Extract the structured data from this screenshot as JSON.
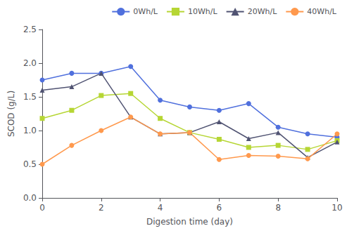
{
  "chart_data": {
    "type": "line",
    "xlabel": "Digestion time (day)",
    "ylabel": "SCOD (g/L)",
    "x": [
      0,
      1,
      2,
      3,
      4,
      5,
      6,
      7,
      8,
      9,
      10
    ],
    "series": [
      {
        "name": "0Wh/L",
        "marker": "circle",
        "line_style": "solid",
        "values": [
          1.75,
          1.85,
          1.85,
          1.95,
          1.45,
          1.35,
          1.3,
          1.4,
          1.05,
          0.95,
          0.9
        ]
      },
      {
        "name": "10Wh/L",
        "marker": "square",
        "line_style": "solid",
        "values": [
          1.18,
          1.3,
          1.52,
          1.55,
          1.18,
          0.97,
          0.87,
          0.75,
          0.78,
          0.72,
          0.85
        ]
      },
      {
        "name": "20Wh/L",
        "marker": "triangle",
        "line_style": "solid",
        "values": [
          1.6,
          1.65,
          1.85,
          1.2,
          0.95,
          0.97,
          1.13,
          0.88,
          0.97,
          0.6,
          0.83
        ]
      },
      {
        "name": "40Wh/L",
        "marker": "circle",
        "line_style": "solid",
        "values": [
          0.5,
          0.78,
          1.0,
          1.2,
          0.95,
          0.97,
          0.57,
          0.63,
          0.62,
          0.58,
          0.95
        ]
      }
    ],
    "xlim": [
      0,
      10
    ],
    "xticks": [
      0,
      2,
      4,
      6,
      8,
      10
    ],
    "ylim": [
      0.0,
      2.5
    ],
    "yticks": [
      {
        "value": 0.0,
        "label": "0.0"
      },
      0.5,
      {
        "value": 1.0,
        "label": "1.0"
      },
      1.5,
      {
        "value": 2.0,
        "label": "2.0"
      },
      2.5
    ],
    "grid": false,
    "legend": "upper right"
  }
}
